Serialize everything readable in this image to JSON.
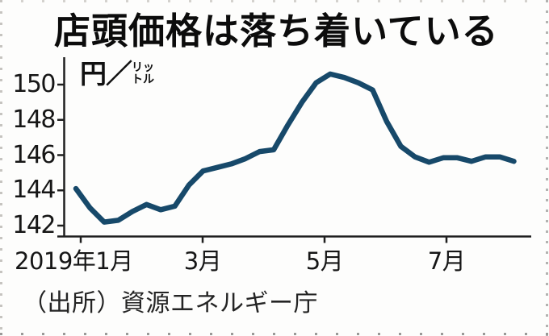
{
  "page": {
    "background": "#fdfdfc",
    "clipping_border_style": "dotted"
  },
  "chart_data": {
    "type": "line",
    "title": "店頭価格は落ち着いている",
    "ylabel": "円／リットル",
    "ylabel_parts": {
      "main": "円／",
      "stack_top": "リッ",
      "stack_bottom": "トル"
    },
    "source": "（出所）資源エネルギー庁",
    "x_tick_labels": [
      "2019年1月",
      "3月",
      "5月",
      "7月"
    ],
    "x_tick_month_offsets": [
      0,
      2,
      4,
      6
    ],
    "y_ticks": [
      150,
      148,
      146,
      144,
      142
    ],
    "ylim": [
      141.4,
      151.3
    ],
    "grid": false,
    "legend": false,
    "values": [
      144.1,
      143.0,
      142.2,
      142.3,
      142.8,
      143.2,
      142.9,
      143.1,
      144.3,
      145.1,
      145.3,
      145.5,
      145.8,
      146.2,
      146.3,
      147.7,
      149.0,
      150.1,
      150.6,
      150.4,
      150.1,
      149.7,
      147.9,
      146.5,
      145.9,
      145.6,
      145.85,
      145.85,
      145.65,
      145.9,
      145.9,
      145.65
    ],
    "line_color": "#17496a",
    "axis_color": "#1f1f1f",
    "text_color": "#151515"
  }
}
